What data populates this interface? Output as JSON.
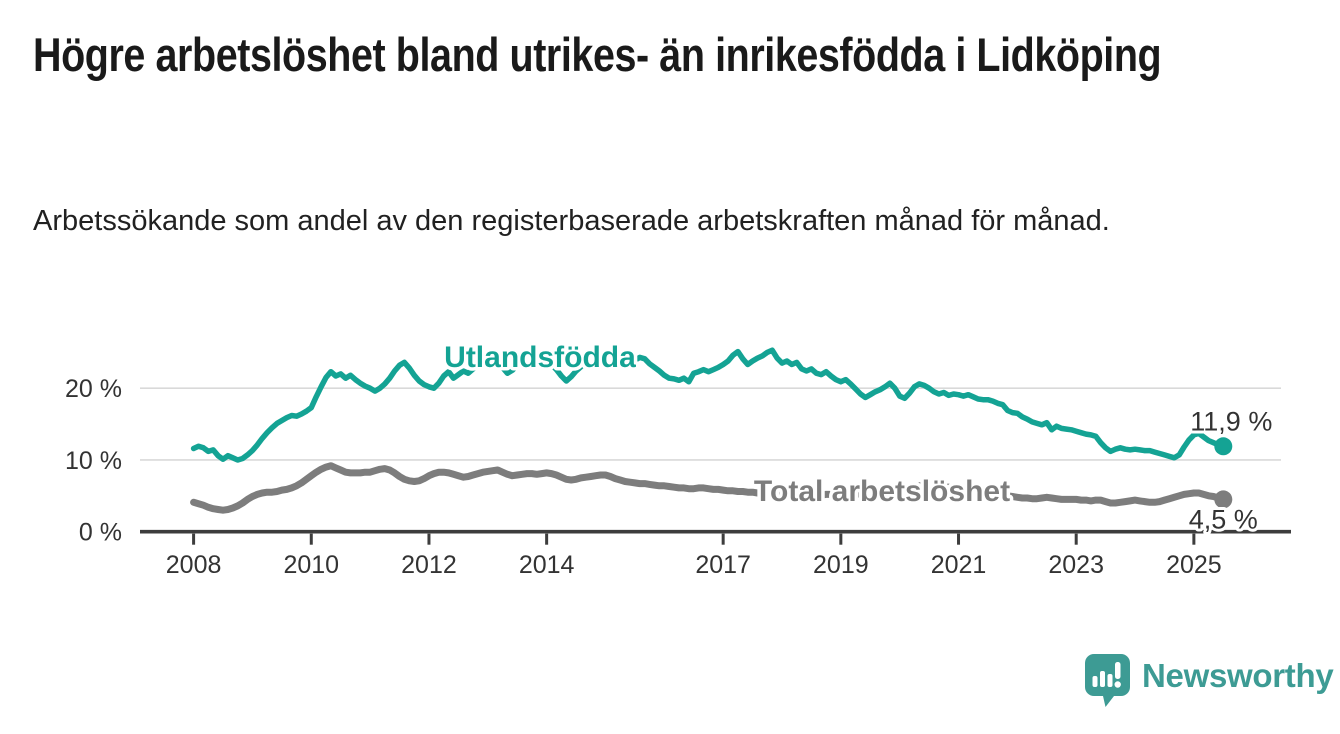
{
  "header": {
    "title": "Högre arbetslöshet bland utrikes- än inrikesfödda i Lidköping",
    "subtitle": "Arbetssökande som andel av den registerbaserade arbetskraften månad för månad."
  },
  "footer": {
    "brand": "Newsworthy",
    "brand_color": "#3d9b94"
  },
  "chart_data": {
    "type": "line",
    "title": "Högre arbetslöshet bland utrikes- än inrikesfödda i Lidköping",
    "subtitle": "Arbetssökande som andel av den registerbaserade arbetskraften månad för månad.",
    "unit": "%",
    "ylim": [
      0,
      27
    ],
    "grid": "horizontal",
    "legend_position": "inline-labels",
    "y_ticks": [
      {
        "label": "20 %",
        "value": 20
      },
      {
        "label": "10 %",
        "value": 10
      },
      {
        "label": "0 %",
        "value": 0
      }
    ],
    "x_ticks": [
      {
        "label": "2008",
        "year": 2008
      },
      {
        "label": "2010",
        "year": 2010
      },
      {
        "label": "2012",
        "year": 2012
      },
      {
        "label": "2014",
        "year": 2014
      },
      {
        "label": "2017",
        "year": 2017
      },
      {
        "label": "2019",
        "year": 2019
      },
      {
        "label": "2021",
        "year": 2021
      },
      {
        "label": "2023",
        "year": 2023
      },
      {
        "label": "2025",
        "year": 2025
      }
    ],
    "series": [
      {
        "id": "utlandsfodda",
        "name": "Utlandsfödda",
        "color": "#14a394",
        "end_label": "11,9 %",
        "end_value": 11.9,
        "start_year": 2008,
        "step_months": 1,
        "values": [
          11.6,
          11.9,
          11.7,
          11.2,
          11.4,
          10.6,
          10.1,
          10.6,
          10.3,
          10.0,
          10.2,
          10.7,
          11.3,
          12.1,
          13.0,
          13.8,
          14.5,
          15.1,
          15.5,
          15.9,
          16.2,
          16.1,
          16.4,
          16.8,
          17.3,
          18.8,
          20.2,
          21.5,
          22.3,
          21.7,
          22.0,
          21.4,
          21.8,
          21.2,
          20.7,
          20.3,
          20.0,
          19.6,
          20.0,
          20.6,
          21.4,
          22.4,
          23.2,
          23.6,
          22.8,
          21.8,
          21.0,
          20.5,
          20.2,
          20.0,
          20.7,
          21.7,
          22.3,
          21.4,
          21.9,
          22.4,
          22.1,
          22.7,
          23.3,
          23.7,
          23.8,
          24.1,
          23.7,
          22.9,
          22.1,
          22.5,
          23.2,
          23.7,
          24.0,
          23.6,
          23.8,
          24.0,
          23.7,
          23.3,
          22.6,
          21.7,
          21.0,
          21.6,
          22.4,
          23.0,
          23.5,
          23.3,
          23.7,
          23.9,
          24.0,
          24.2,
          24.0,
          23.7,
          22.9,
          23.3,
          23.9,
          24.3,
          24.1,
          23.4,
          22.9,
          22.4,
          21.8,
          21.4,
          21.3,
          21.1,
          21.4,
          20.9,
          22.1,
          22.3,
          22.6,
          22.3,
          22.6,
          22.9,
          23.3,
          23.8,
          24.6,
          25.1,
          24.1,
          23.3,
          23.8,
          24.2,
          24.5,
          25.0,
          25.3,
          24.2,
          23.5,
          23.8,
          23.3,
          23.6,
          22.7,
          22.4,
          22.7,
          22.1,
          21.9,
          22.3,
          21.7,
          21.2,
          20.9,
          21.2,
          20.6,
          19.9,
          19.2,
          18.7,
          19.1,
          19.5,
          19.8,
          20.2,
          20.7,
          20.0,
          18.9,
          18.6,
          19.3,
          20.2,
          20.6,
          20.4,
          20.0,
          19.5,
          19.2,
          19.4,
          19.0,
          19.2,
          19.1,
          18.9,
          19.1,
          18.8,
          18.5,
          18.4,
          18.4,
          18.2,
          17.9,
          17.7,
          16.9,
          16.6,
          16.5,
          16.0,
          15.7,
          15.3,
          15.1,
          14.9,
          15.2,
          14.2,
          14.7,
          14.4,
          14.3,
          14.2,
          14.0,
          13.8,
          13.6,
          13.5,
          13.3,
          12.4,
          11.7,
          11.2,
          11.5,
          11.7,
          11.5,
          11.4,
          11.5,
          11.4,
          11.3,
          11.3,
          11.1,
          10.9,
          10.7,
          10.5,
          10.3,
          10.7,
          11.8,
          12.8,
          13.5,
          13.7,
          13.2,
          12.7,
          12.4,
          12.1,
          11.9
        ]
      },
      {
        "id": "total",
        "name": "Total arbetslöshet",
        "color": "#7d7d7d",
        "end_label": "4,5 %",
        "end_value": 4.5,
        "start_year": 2008,
        "step_months": 1,
        "values": [
          4.1,
          3.9,
          3.7,
          3.4,
          3.2,
          3.1,
          3.0,
          3.1,
          3.3,
          3.6,
          4.0,
          4.5,
          4.9,
          5.2,
          5.4,
          5.5,
          5.5,
          5.6,
          5.8,
          5.9,
          6.1,
          6.4,
          6.8,
          7.3,
          7.8,
          8.3,
          8.7,
          9.0,
          9.2,
          8.9,
          8.6,
          8.3,
          8.2,
          8.2,
          8.2,
          8.3,
          8.3,
          8.5,
          8.7,
          8.8,
          8.6,
          8.2,
          7.7,
          7.3,
          7.1,
          7.0,
          7.1,
          7.4,
          7.8,
          8.1,
          8.3,
          8.3,
          8.2,
          8.0,
          7.8,
          7.6,
          7.7,
          7.9,
          8.1,
          8.3,
          8.4,
          8.5,
          8.6,
          8.3,
          8.0,
          7.8,
          7.9,
          8.0,
          8.1,
          8.1,
          8.0,
          8.1,
          8.2,
          8.1,
          7.9,
          7.6,
          7.3,
          7.2,
          7.3,
          7.5,
          7.6,
          7.7,
          7.8,
          7.9,
          7.9,
          7.7,
          7.4,
          7.2,
          7.0,
          6.9,
          6.8,
          6.7,
          6.7,
          6.6,
          6.5,
          6.4,
          6.4,
          6.3,
          6.2,
          6.1,
          6.1,
          6.0,
          6.0,
          6.1,
          6.1,
          6.0,
          5.9,
          5.9,
          5.8,
          5.7,
          5.7,
          5.6,
          5.6,
          5.5,
          5.5,
          5.4,
          5.4,
          5.3,
          5.3,
          5.3,
          5.2,
          5.2,
          5.1,
          5.1,
          5.1,
          5.0,
          5.0,
          5.1,
          5.1,
          5.2,
          5.2,
          5.3,
          5.3,
          5.3,
          5.2,
          5.2,
          5.3,
          5.4,
          5.4,
          5.5,
          5.5,
          5.6,
          5.6,
          5.7,
          5.8,
          5.9,
          6.1,
          6.3,
          6.4,
          6.5,
          6.5,
          6.4,
          6.4,
          6.3,
          6.2,
          6.1,
          6.0,
          5.9,
          5.8,
          5.7,
          5.6,
          5.5,
          5.4,
          5.3,
          5.2,
          5.1,
          5.0,
          4.9,
          4.8,
          4.7,
          4.7,
          4.6,
          4.6,
          4.7,
          4.8,
          4.7,
          4.6,
          4.5,
          4.5,
          4.5,
          4.5,
          4.4,
          4.4,
          4.3,
          4.4,
          4.4,
          4.2,
          4.0,
          4.0,
          4.1,
          4.2,
          4.3,
          4.4,
          4.3,
          4.2,
          4.1,
          4.1,
          4.2,
          4.4,
          4.6,
          4.8,
          5.0,
          5.2,
          5.3,
          5.4,
          5.4,
          5.2,
          5.0,
          4.9,
          4.7,
          4.5
        ]
      }
    ],
    "style_colors": {
      "gridline": "#d9d9d9",
      "axis": "#3d3d3d",
      "axis_text": "#333333"
    }
  }
}
